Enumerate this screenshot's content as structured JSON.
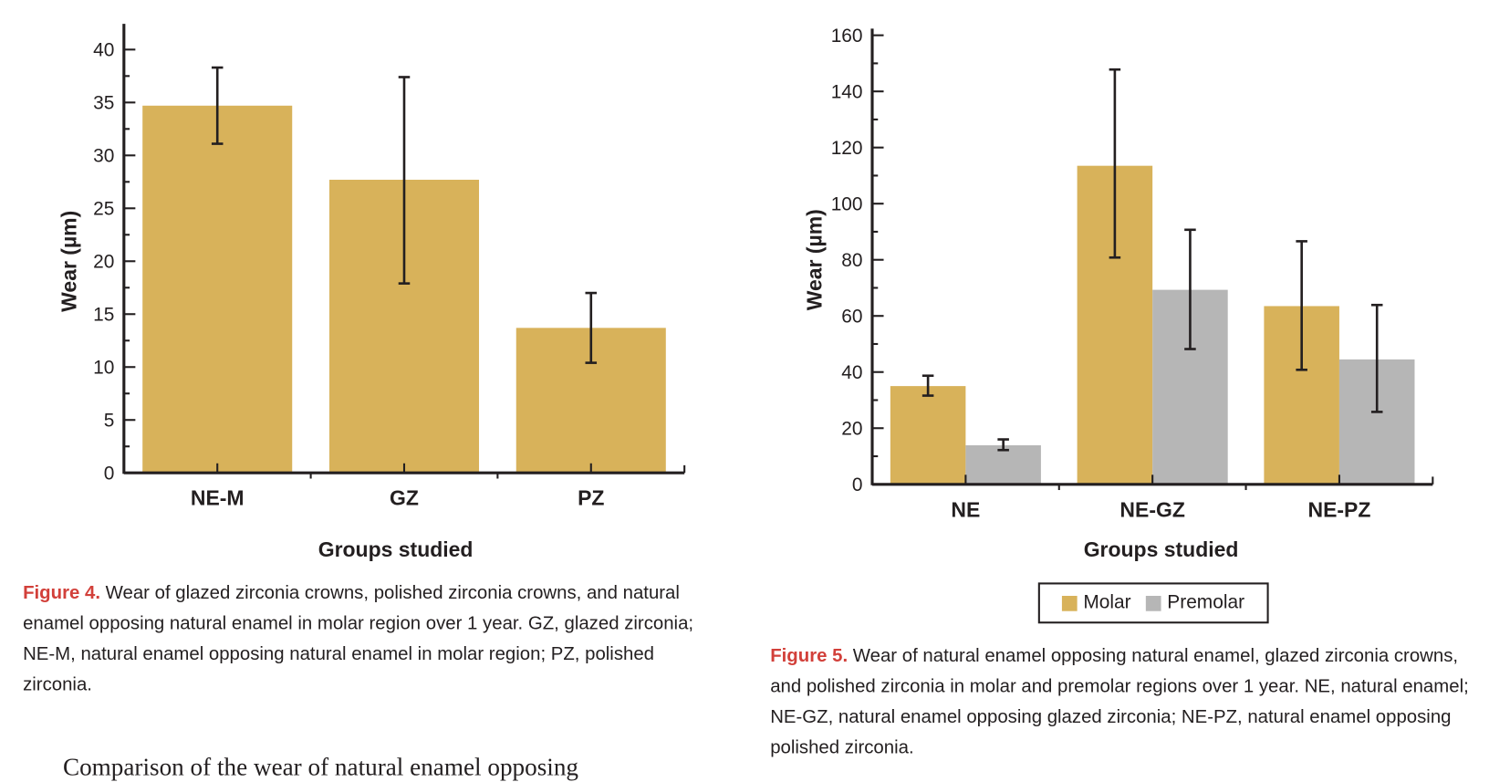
{
  "chart_data": [
    {
      "type": "bar",
      "title": "",
      "xlabel": "Groups studied",
      "ylabel": "Wear (µm)",
      "ylim": [
        0,
        40
      ],
      "yticks": [
        0,
        5,
        10,
        15,
        20,
        25,
        30,
        35,
        40
      ],
      "categories": [
        "NE-M",
        "GZ",
        "PZ"
      ],
      "series": [
        {
          "name": "Molar",
          "color": "#d8b25a",
          "values": [
            34.7,
            27.7,
            13.7
          ],
          "err_low": [
            31.1,
            17.9,
            10.4
          ],
          "err_high": [
            38.3,
            37.4,
            17.0
          ]
        }
      ],
      "legend": null
    },
    {
      "type": "bar",
      "title": "",
      "xlabel": "Groups studied",
      "ylabel": "Wear (µm)",
      "ylim": [
        0,
        160
      ],
      "yticks": [
        0,
        20,
        40,
        60,
        80,
        100,
        120,
        140,
        160
      ],
      "categories": [
        "NE",
        "NE-GZ",
        "NE-PZ"
      ],
      "series": [
        {
          "name": "Molar",
          "color": "#d8b25a",
          "values": [
            35.0,
            113.5,
            63.5
          ],
          "err_low": [
            31.6,
            80.8,
            40.8
          ],
          "err_high": [
            38.7,
            147.8,
            86.6
          ]
        },
        {
          "name": "Premolar",
          "color": "#b6b6b6",
          "values": [
            13.9,
            69.3,
            44.5
          ],
          "err_low": [
            12.2,
            48.2,
            25.8
          ],
          "err_high": [
            16.0,
            90.7,
            63.9
          ]
        }
      ],
      "legend": "bottom-center"
    }
  ],
  "captions": {
    "fig4_label": "Figure 4.",
    "fig4_text": " Wear of glazed zirconia crowns, polished zirconia crowns, and natural enamel opposing natural enamel in molar region over 1 year. GZ, glazed zirconia; NE-M, natural enamel opposing natural enamel in molar region; PZ, polished zirconia.",
    "fig5_label": "Figure 5.",
    "fig5_text": " Wear of natural enamel opposing natural enamel, glazed zirconia crowns, and polished zirconia in molar and premolar regions over 1 year. NE, natural enamel; NE-GZ, natural enamel opposing glazed zirconia; NE-PZ, natural enamel opposing polished zirconia."
  },
  "body_text": "Comparison of the wear of natural enamel opposing"
}
